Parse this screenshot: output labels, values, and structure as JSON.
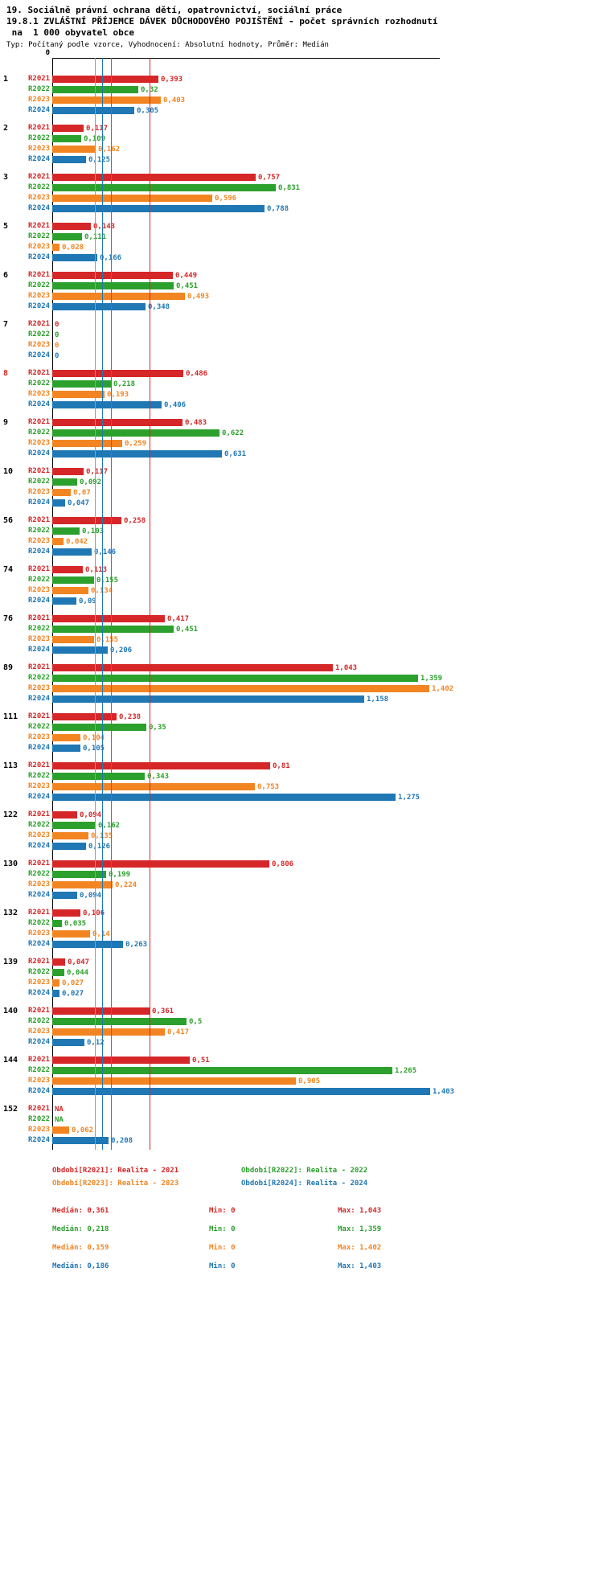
{
  "title": {
    "line1": "19. Sociálně právní ochrana dětí, opatrovnictví, sociální práce",
    "line2": "19.8.1 ZVLÁŠTNÍ PŘÍJEMCE DÁVEK DŮCHODOVÉHO POJIŠTĚNÍ - počet správních rozhodnutí",
    "line3": " na  1 000 obyvatel obce",
    "subtitle": "Typ: Počítaný podle vzorce, Vyhodnocení: Absolutní hodnoty, Průměr: Medián"
  },
  "colors": {
    "background": "#ffffff",
    "axis": "#000000",
    "highlight_id": "#d62728"
  },
  "chart_data": {
    "type": "bar",
    "orientation": "horizontal",
    "grid": false,
    "legend_position": "bottom",
    "x_axis": {
      "zero_label": "0",
      "xlim": [
        0,
        1.44
      ]
    },
    "series": [
      {
        "name": "R2021",
        "color": "#d62728",
        "median": 0.361,
        "min": 0,
        "max": 1.043
      },
      {
        "name": "R2022",
        "color": "#2ca02c",
        "median": 0.218,
        "min": 0,
        "max": 1.359
      },
      {
        "name": "R2023",
        "color": "#f28522",
        "median": 0.159,
        "min": 0,
        "max": 1.402
      },
      {
        "name": "R2024",
        "color": "#1f77b4",
        "median": 0.186,
        "min": 0,
        "max": 1.403
      }
    ],
    "groups": [
      {
        "id": "1",
        "values": [
          0.393,
          0.32,
          0.403,
          0.305
        ],
        "labels": [
          "0,393",
          "0,32",
          "0,403",
          "0,305"
        ]
      },
      {
        "id": "2",
        "values": [
          0.117,
          0.109,
          0.162,
          0.125
        ],
        "labels": [
          "0,117",
          "0,109",
          "0,162",
          "0,125"
        ]
      },
      {
        "id": "3",
        "values": [
          0.757,
          0.831,
          0.596,
          0.788
        ],
        "labels": [
          "0,757",
          "0,831",
          "0,596",
          "0,788"
        ]
      },
      {
        "id": "5",
        "values": [
          0.143,
          0.111,
          0.028,
          0.166
        ],
        "labels": [
          "0,143",
          "0,111",
          "0,028",
          "0,166"
        ]
      },
      {
        "id": "6",
        "values": [
          0.449,
          0.451,
          0.493,
          0.348
        ],
        "labels": [
          "0,449",
          "0,451",
          "0,493",
          "0,348"
        ]
      },
      {
        "id": "7",
        "values": [
          0,
          0,
          0,
          0
        ],
        "labels": [
          "0",
          "0",
          "0",
          "0"
        ]
      },
      {
        "id": "8",
        "highlight": true,
        "values": [
          0.486,
          0.218,
          0.193,
          0.406
        ],
        "labels": [
          "0,486",
          "0,218",
          "0,193",
          "0,406"
        ]
      },
      {
        "id": "9",
        "values": [
          0.483,
          0.622,
          0.259,
          0.631
        ],
        "labels": [
          "0,483",
          "0,622",
          "0,259",
          "0,631"
        ]
      },
      {
        "id": "10",
        "values": [
          0.117,
          0.092,
          0.07,
          0.047
        ],
        "labels": [
          "0,117",
          "0,092",
          "0,07",
          "0,047"
        ]
      },
      {
        "id": "56",
        "values": [
          0.258,
          0.103,
          0.042,
          0.146
        ],
        "labels": [
          "0,258",
          "0,103",
          "0,042",
          "0,146"
        ]
      },
      {
        "id": "74",
        "values": [
          0.113,
          0.155,
          0.134,
          0.09
        ],
        "labels": [
          "0,113",
          "0,155",
          "0,134",
          "0,09"
        ]
      },
      {
        "id": "76",
        "values": [
          0.417,
          0.451,
          0.155,
          0.206
        ],
        "labels": [
          "0,417",
          "0,451",
          "0,155",
          "0,206"
        ]
      },
      {
        "id": "89",
        "values": [
          1.043,
          1.359,
          1.402,
          1.158
        ],
        "labels": [
          "1,043",
          "1,359",
          "1,402",
          "1,158"
        ]
      },
      {
        "id": "111",
        "values": [
          0.238,
          0.35,
          0.104,
          0.105
        ],
        "labels": [
          "0,238",
          "0,35",
          "0,104",
          "0,105"
        ]
      },
      {
        "id": "113",
        "values": [
          0.81,
          0.343,
          0.753,
          1.275
        ],
        "labels": [
          "0,81",
          "0,343",
          "0,753",
          "1,275"
        ]
      },
      {
        "id": "122",
        "values": [
          0.094,
          0.162,
          0.135,
          0.126
        ],
        "labels": [
          "0,094",
          "0,162",
          "0,135",
          "0,126"
        ]
      },
      {
        "id": "130",
        "values": [
          0.806,
          0.199,
          0.224,
          0.094
        ],
        "labels": [
          "0,806",
          "0,199",
          "0,224",
          "0,094"
        ]
      },
      {
        "id": "132",
        "values": [
          0.106,
          0.035,
          0.14,
          0.263
        ],
        "labels": [
          "0,106",
          "0,035",
          "0,14",
          "0,263"
        ]
      },
      {
        "id": "139",
        "values": [
          0.047,
          0.044,
          0.027,
          0.027
        ],
        "labels": [
          "0,047",
          "0,044",
          "0,027",
          "0,027"
        ]
      },
      {
        "id": "140",
        "values": [
          0.361,
          0.5,
          0.417,
          0.12
        ],
        "labels": [
          "0,361",
          "0,5",
          "0,417",
          "0,12"
        ]
      },
      {
        "id": "144",
        "values": [
          0.51,
          1.265,
          0.905,
          1.403
        ],
        "labels": [
          "0,51",
          "1,265",
          "0,905",
          "1,403"
        ]
      },
      {
        "id": "152",
        "values": [
          null,
          null,
          0.062,
          0.208
        ],
        "labels": [
          "NA",
          "NA",
          "0,062",
          "0,208"
        ]
      }
    ]
  },
  "legend": [
    "Období[R2021]: Realita - 2021",
    "Období[R2022]: Realita - 2022",
    "Období[R2023]: Realita - 2023",
    "Období[R2024]: Realita - 2024"
  ],
  "stats": [
    {
      "median": "Medián: 0,361",
      "min": "Min: 0",
      "max": "Max: 1,043"
    },
    {
      "median": "Medián: 0,218",
      "min": "Min: 0",
      "max": "Max: 1,359"
    },
    {
      "median": "Medián: 0,159",
      "min": "Min: 0",
      "max": "Max: 1,402"
    },
    {
      "median": "Medián: 0,186",
      "min": "Min: 0",
      "max": "Max: 1,403"
    }
  ]
}
